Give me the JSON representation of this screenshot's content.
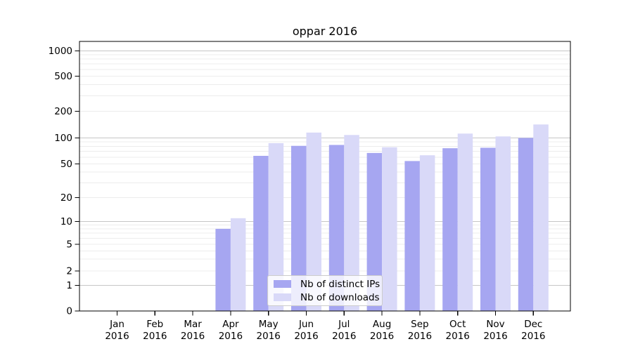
{
  "chart_data": {
    "type": "bar",
    "title": "oppar 2016",
    "categories": [
      {
        "label": "Jan",
        "sublabel": "2016"
      },
      {
        "label": "Feb",
        "sublabel": "2016"
      },
      {
        "label": "Mar",
        "sublabel": "2016"
      },
      {
        "label": "Apr",
        "sublabel": "2016"
      },
      {
        "label": "May",
        "sublabel": "2016"
      },
      {
        "label": "Jun",
        "sublabel": "2016"
      },
      {
        "label": "Jul",
        "sublabel": "2016"
      },
      {
        "label": "Aug",
        "sublabel": "2016"
      },
      {
        "label": "Sep",
        "sublabel": "2016"
      },
      {
        "label": "Oct",
        "sublabel": "2016"
      },
      {
        "label": "Nov",
        "sublabel": "2016"
      },
      {
        "label": "Dec",
        "sublabel": "2016"
      }
    ],
    "series": [
      {
        "name": "Nb of distinct IPs",
        "color": "#a6a6f1",
        "values": [
          0,
          0,
          0,
          8,
          62,
          81,
          83,
          67,
          54,
          76,
          77,
          100
        ]
      },
      {
        "name": "Nb of downloads",
        "color": "#d9d9f8",
        "values": [
          0,
          0,
          0,
          11,
          87,
          115,
          108,
          78,
          63,
          112,
          104,
          142
        ]
      }
    ],
    "yticks": [
      0,
      1,
      2,
      5,
      10,
      20,
      50,
      100,
      200,
      500,
      1000
    ],
    "ylim": [
      0,
      1300
    ],
    "yscale": "symlog",
    "xlabel": "",
    "ylabel": "",
    "grid": "horizontal major + log minors",
    "legend_position": "lower center inside plot"
  },
  "colors": {
    "background": "#ffffff",
    "axis": "#000000",
    "text": "#000000",
    "major_grid": "#c6c6c6",
    "minor_grid": "#ececec",
    "legend_border": "#cccccc"
  }
}
